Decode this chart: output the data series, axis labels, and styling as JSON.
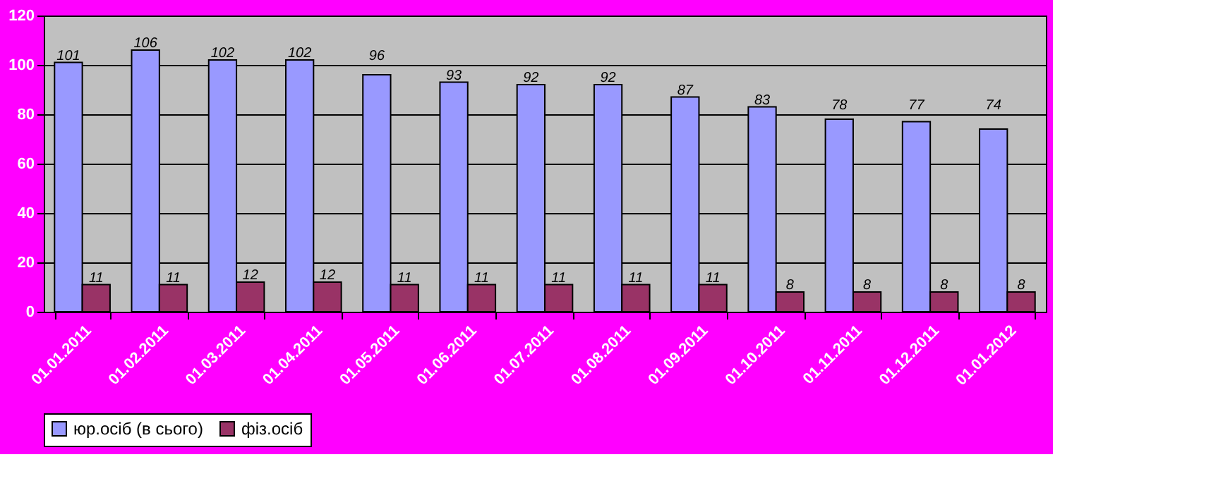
{
  "chart_data": {
    "type": "bar",
    "categories": [
      "01.01.2011",
      "01.02.2011",
      "01.03.2011",
      "01.04.2011",
      "01.05.2011",
      "01.06.2011",
      "01.07.2011",
      "01.08.2011",
      "01.09.2011",
      "01.10.2011",
      "01.11.2011",
      "01.12.2011",
      "01.01.2012"
    ],
    "series": [
      {
        "name": "юр.осіб (в сього)",
        "color": "#9999ff",
        "values": [
          101,
          106,
          102,
          102,
          96,
          93,
          92,
          92,
          87,
          83,
          78,
          77,
          74
        ]
      },
      {
        "name": "фіз.осіб",
        "color": "#993366",
        "values": [
          11,
          11,
          12,
          12,
          11,
          11,
          11,
          11,
          11,
          8,
          8,
          8,
          8
        ]
      }
    ],
    "ylim": [
      0,
      120
    ],
    "yticks": [
      0,
      20,
      40,
      60,
      80,
      100,
      120
    ],
    "grid": "y",
    "legend": "bottom",
    "data_labels": true
  }
}
